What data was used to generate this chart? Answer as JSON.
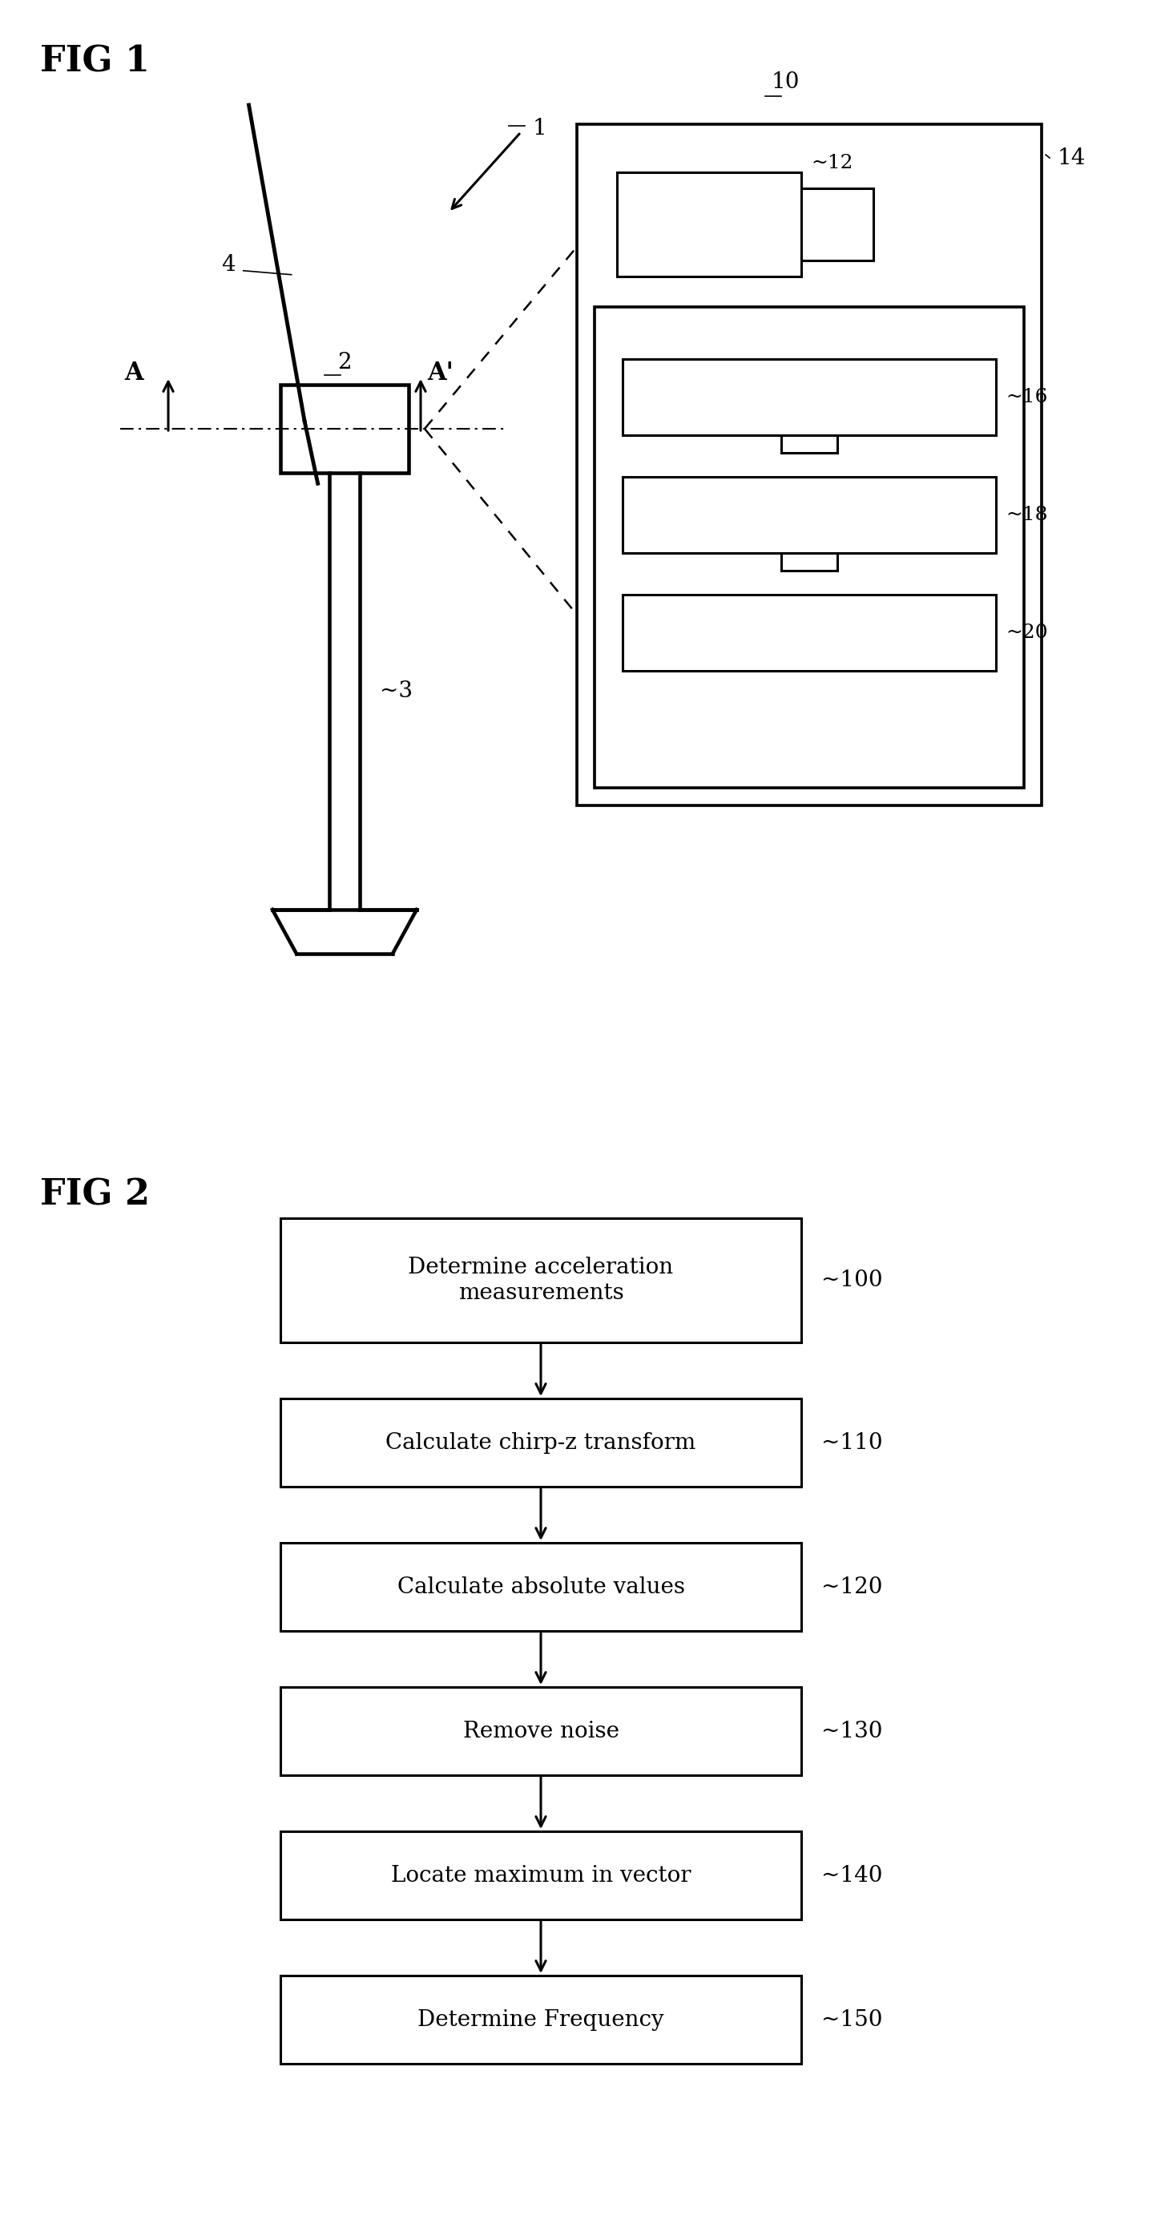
{
  "bg_color": "#ffffff",
  "fig_width": 14.49,
  "fig_height": 27.7,
  "fig1_label": "FIG 1",
  "fig2_label": "FIG 2",
  "flow_steps": [
    {
      "label": "Determine acceleration\nmeasurements",
      "ref": "~100"
    },
    {
      "label": "Calculate chirp-z transform",
      "ref": "~110"
    },
    {
      "label": "Calculate absolute values",
      "ref": "~120"
    },
    {
      "label": "Remove noise",
      "ref": "~130"
    },
    {
      "label": "Locate maximum in vector",
      "ref": "~140"
    },
    {
      "label": "Determine Frequency",
      "ref": "~150"
    }
  ],
  "turbine_labels": {
    "fig_ref": "1",
    "nacelle": "2",
    "tower": "3",
    "blade": "4",
    "A_label": "A",
    "A_prime": "A'",
    "device_label": "10",
    "outer_box": "14",
    "sensor_box": "12",
    "box16": "16",
    "box18": "18",
    "box20": "20"
  },
  "line_color": "#000000",
  "text_color": "#000000",
  "box_facecolor": "#ffffff",
  "box_edgecolor": "#000000"
}
